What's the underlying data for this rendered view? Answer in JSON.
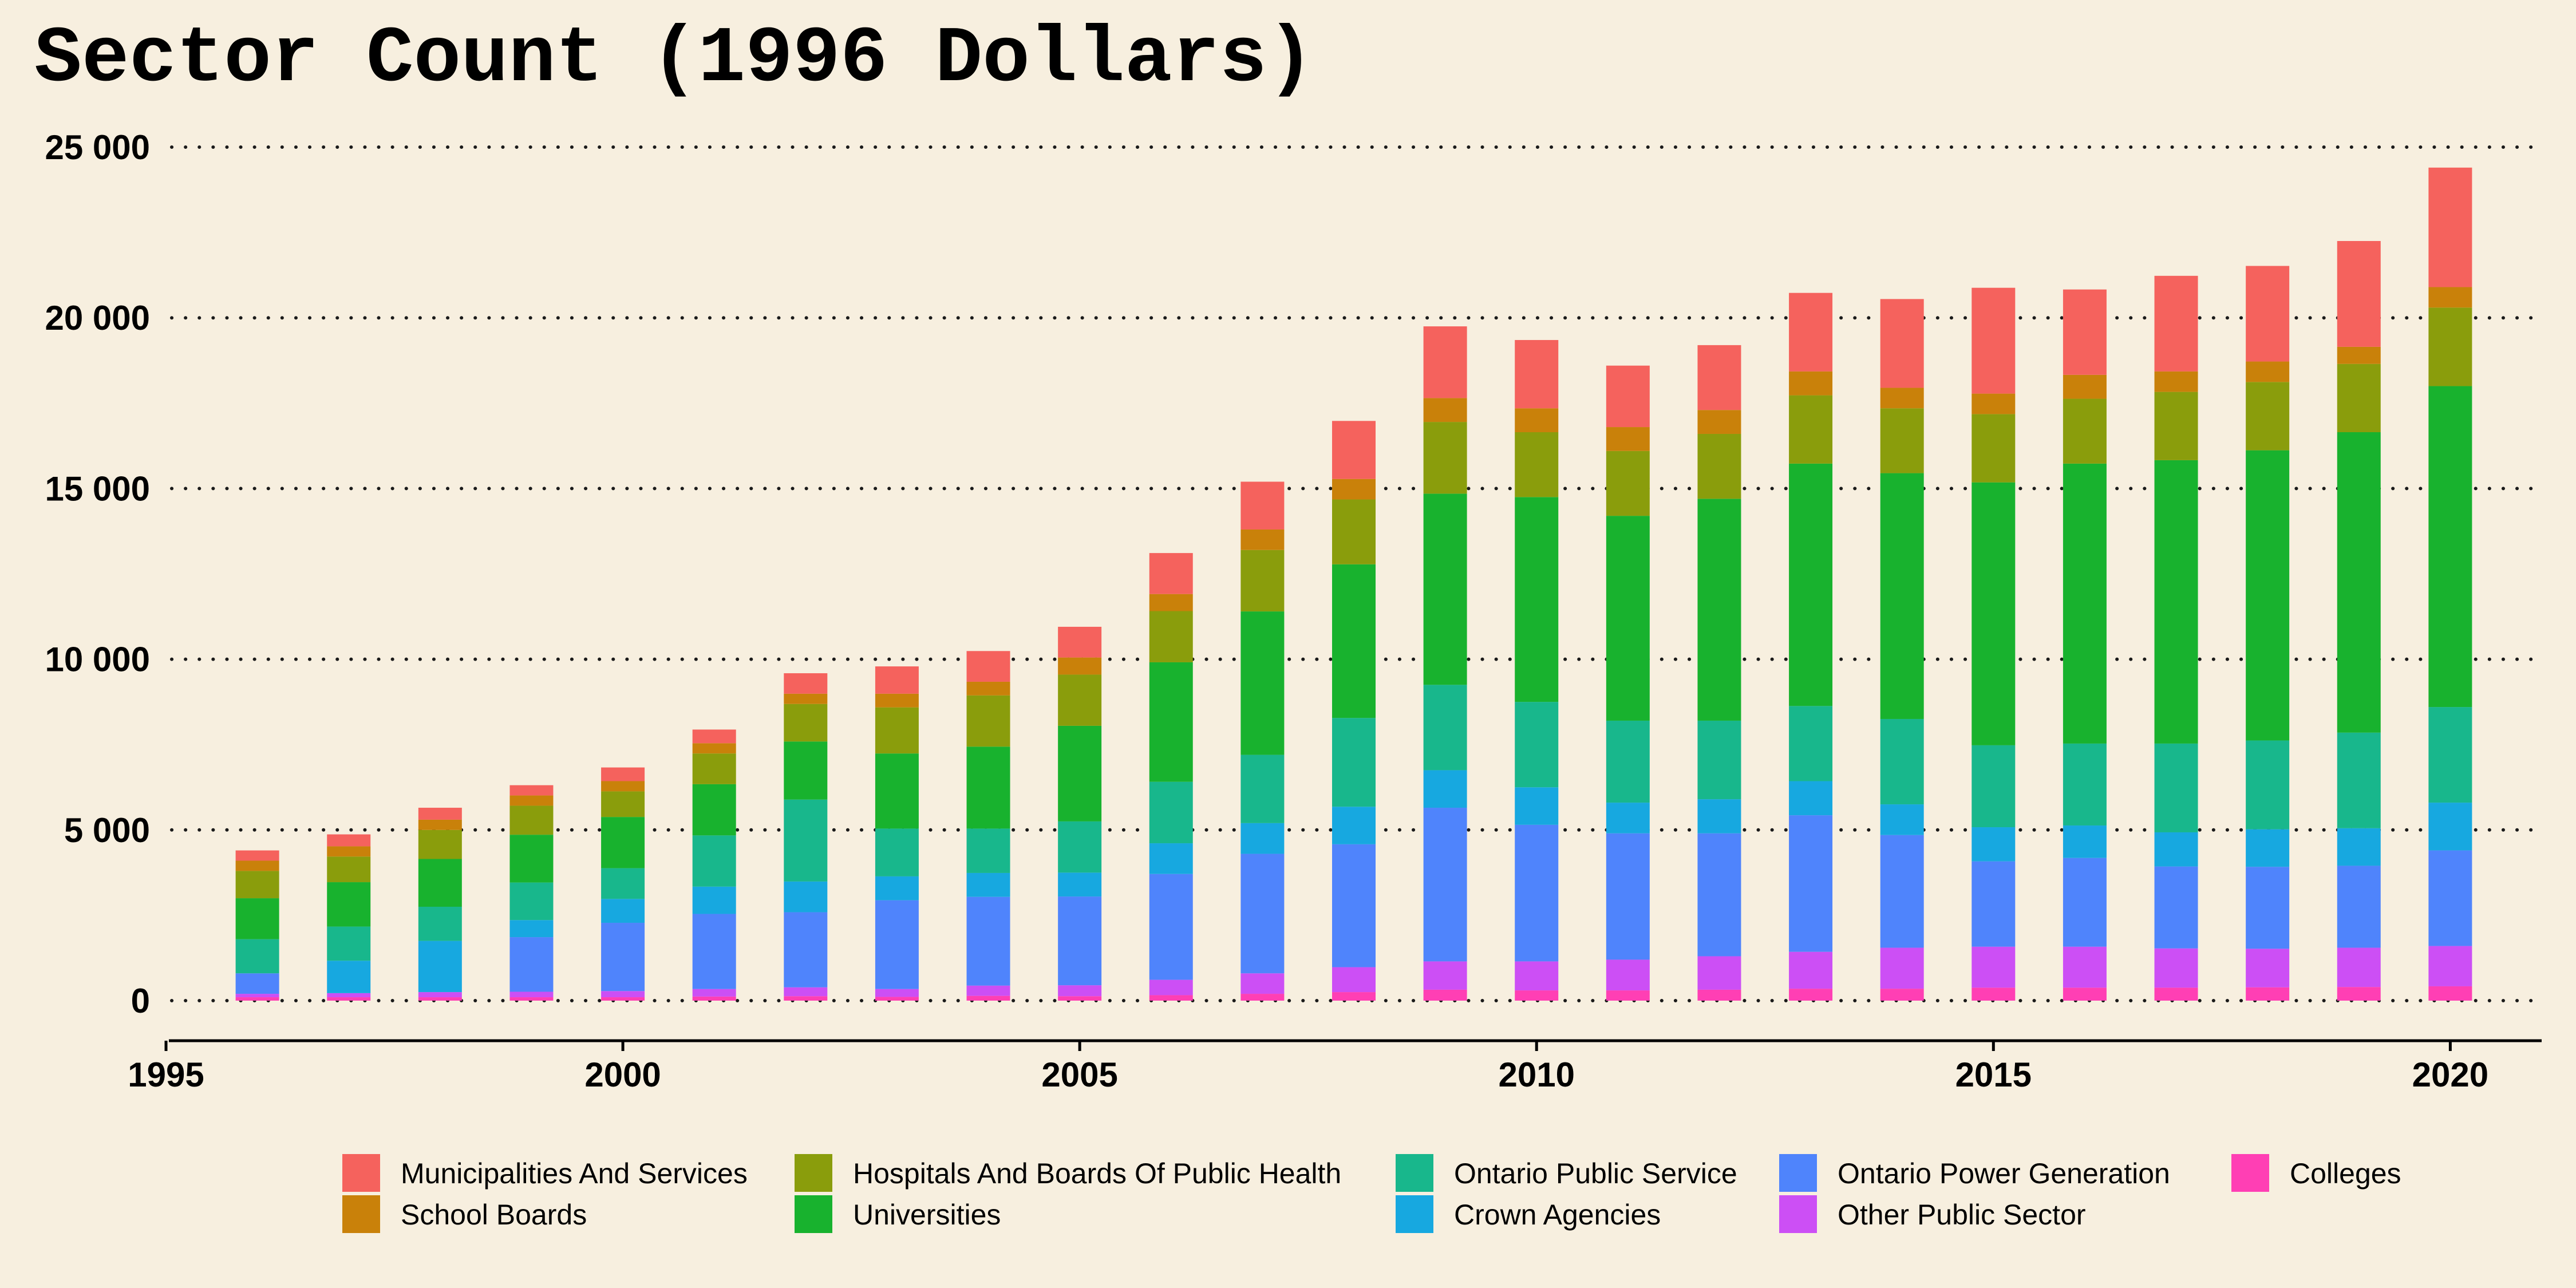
{
  "chart_data": {
    "type": "bar",
    "stacked": true,
    "title": "Sector Count (1996 Dollars)",
    "xlabel": "",
    "ylabel": "",
    "x": [
      1996,
      1997,
      1998,
      1999,
      2000,
      2001,
      2002,
      2003,
      2004,
      2005,
      2006,
      2007,
      2008,
      2009,
      2010,
      2011,
      2012,
      2013,
      2014,
      2015,
      2016,
      2017,
      2018,
      2019,
      2020
    ],
    "xlim": [
      1995,
      2021
    ],
    "ylim": [
      0,
      25000
    ],
    "x_ticks": [
      1995,
      2000,
      2005,
      2010,
      2015,
      2020
    ],
    "x_tick_labels": [
      "1995",
      "2000",
      "2005",
      "2010",
      "2015",
      "2020"
    ],
    "y_ticks": [
      0,
      5000,
      10000,
      15000,
      20000,
      25000
    ],
    "y_tick_labels": [
      "0",
      "5 000",
      "10 000",
      "15 000",
      "20 000",
      "25 000"
    ],
    "grid": "horizontal-dotted",
    "legend_position": "bottom",
    "series": [
      {
        "name": "Colleges",
        "color": "#ff3fb4",
        "values": [
          100,
          100,
          100,
          100,
          100,
          120,
          130,
          110,
          140,
          130,
          160,
          200,
          250,
          320,
          300,
          300,
          320,
          350,
          350,
          380,
          380,
          380,
          390,
          400,
          420
        ]
      },
      {
        "name": "Other Public Sector",
        "color": "#cc4ff5",
        "values": [
          100,
          120,
          150,
          160,
          180,
          220,
          260,
          230,
          300,
          320,
          450,
          600,
          730,
          830,
          850,
          900,
          980,
          1080,
          1200,
          1200,
          1200,
          1150,
          1130,
          1150,
          1180
        ]
      },
      {
        "name": "Ontario Power Generation",
        "color": "#4f84fc",
        "values": [
          600,
          0,
          0,
          1600,
          2000,
          2200,
          2200,
          2600,
          2600,
          2600,
          3100,
          3500,
          3600,
          4500,
          4000,
          3700,
          3600,
          4000,
          3300,
          2500,
          2600,
          2400,
          2400,
          2400,
          2800
        ]
      },
      {
        "name": "Crown Agencies",
        "color": "#17a8e0",
        "values": [
          0,
          950,
          1500,
          500,
          700,
          800,
          900,
          700,
          700,
          700,
          900,
          900,
          1100,
          1100,
          1100,
          900,
          1000,
          1000,
          900,
          1000,
          950,
          1000,
          1100,
          1100,
          1400
        ]
      },
      {
        "name": "Ontario Public Service",
        "color": "#18b78c",
        "values": [
          1000,
          1000,
          1000,
          1100,
          900,
          1500,
          2400,
          1400,
          1300,
          1500,
          1800,
          2000,
          2600,
          2500,
          2500,
          2400,
          2300,
          2200,
          2500,
          2400,
          2400,
          2600,
          2600,
          2800,
          2800
        ]
      },
      {
        "name": "Universities",
        "color": "#18b22e",
        "values": [
          1200,
          1300,
          1400,
          1400,
          1500,
          1500,
          1700,
          2200,
          2400,
          2800,
          3500,
          4200,
          4500,
          5600,
          6000,
          6000,
          6500,
          7100,
          7200,
          7700,
          8200,
          8300,
          8500,
          8800,
          9400
        ]
      },
      {
        "name": "Hospitals And Boards Of Public Health",
        "color": "#8a9d0c",
        "values": [
          800,
          750,
          850,
          850,
          750,
          900,
          1100,
          1350,
          1500,
          1500,
          1500,
          1800,
          1900,
          2100,
          1900,
          1900,
          1900,
          2000,
          1900,
          2000,
          1900,
          2000,
          2000,
          2000,
          2300
        ]
      },
      {
        "name": "School Boards",
        "color": "#c9810a",
        "values": [
          300,
          300,
          300,
          300,
          300,
          300,
          300,
          400,
          400,
          500,
          500,
          600,
          600,
          700,
          700,
          700,
          700,
          700,
          600,
          600,
          700,
          600,
          600,
          500,
          600
        ]
      },
      {
        "name": "Municipalities And Services",
        "color": "#f5625d",
        "values": [
          300,
          350,
          350,
          300,
          400,
          400,
          600,
          800,
          900,
          900,
          1200,
          1400,
          1700,
          2100,
          2000,
          1800,
          1900,
          2300,
          2600,
          3100,
          2500,
          2800,
          2800,
          3100,
          3500
        ]
      }
    ],
    "legend_order": [
      "Municipalities And Services",
      "School Boards",
      "Hospitals And Boards Of Public Health",
      "Universities",
      "Ontario Public Service",
      "Crown Agencies",
      "Ontario Power Generation",
      "Other Public Sector",
      "Colleges"
    ]
  }
}
